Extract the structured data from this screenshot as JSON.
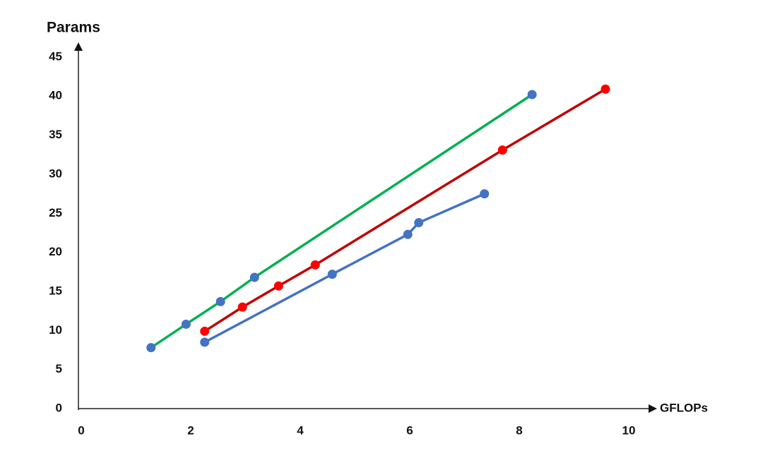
{
  "chart_data": {
    "type": "line",
    "y_label": "Params",
    "x_label": "GFLOPs",
    "xlim": [
      0,
      10.4
    ],
    "ylim": [
      0,
      46.3
    ],
    "xticks": [
      0,
      2,
      4,
      6,
      8,
      10
    ],
    "yticks": [
      0,
      5,
      10,
      15,
      20,
      25,
      30,
      35,
      40,
      45
    ],
    "grid": false,
    "series": [
      {
        "color": "#00b050",
        "marker_color": "#4472c4",
        "x": [
          1.3,
          1.94,
          2.57,
          3.19,
          8.26
        ],
        "values": [
          7.8,
          10.8,
          13.7,
          16.8,
          40.2
        ]
      },
      {
        "color": "#c00000",
        "marker_color": "#ff0000",
        "x": [
          2.28,
          2.97,
          3.63,
          4.3,
          7.72,
          9.6
        ],
        "values": [
          9.9,
          13.0,
          15.7,
          18.4,
          33.1,
          40.9
        ]
      },
      {
        "color": "#4472c4",
        "marker_color": "#4472c4",
        "x": [
          2.28,
          4.61,
          5.99,
          6.19,
          7.39
        ],
        "values": [
          8.5,
          17.2,
          22.3,
          23.8,
          27.5
        ]
      }
    ]
  }
}
